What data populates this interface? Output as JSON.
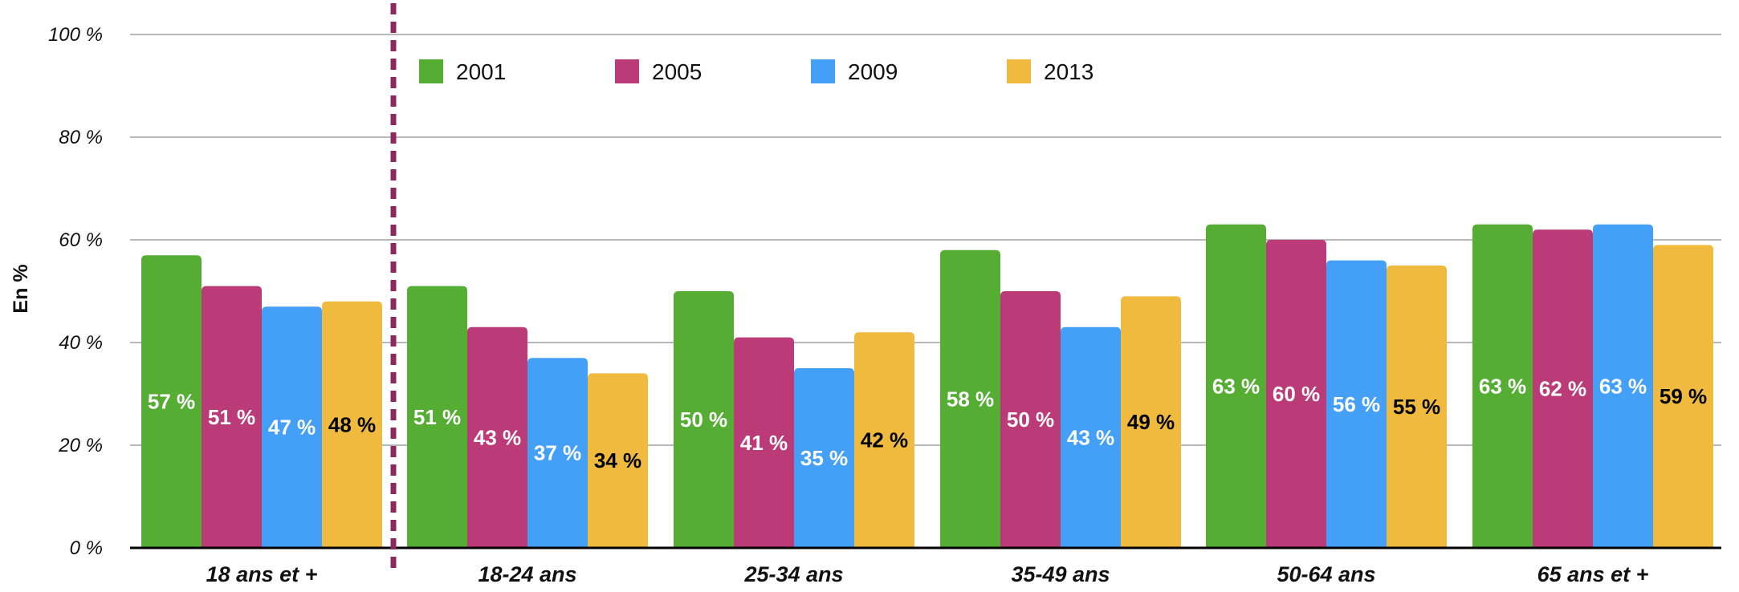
{
  "chart_data": {
    "type": "bar",
    "title": "",
    "xlabel": "",
    "ylabel": "En %",
    "ylim": [
      0,
      100
    ],
    "yticks": [
      0,
      20,
      40,
      60,
      80,
      100
    ],
    "ytick_labels": [
      "0 %",
      "20 %",
      "40 %",
      "60 %",
      "80 %",
      "100 %"
    ],
    "grid": true,
    "legend_position": "top-left",
    "separator_after_category": 0,
    "categories": [
      "18 ans et +",
      "18-24 ans",
      "25-34 ans",
      "35-49 ans",
      "50-64 ans",
      "65 ans et +"
    ],
    "series": [
      {
        "name": "2001",
        "color": "#55ad34",
        "label_color": "#ffffff",
        "values": [
          57,
          51,
          50,
          58,
          63,
          63
        ],
        "labels": [
          "57 %",
          "51 %",
          "50 %",
          "58 %",
          "63 %",
          "63 %"
        ]
      },
      {
        "name": "2005",
        "color": "#bb3a78",
        "label_color": "#ffffff",
        "values": [
          51,
          43,
          41,
          50,
          60,
          62
        ],
        "labels": [
          "51 %",
          "43 %",
          "41 %",
          "50 %",
          "60 %",
          "62 %"
        ]
      },
      {
        "name": "2009",
        "color": "#44a0f7",
        "label_color": "#ffffff",
        "values": [
          47,
          37,
          35,
          43,
          56,
          63
        ],
        "labels": [
          "47 %",
          "37 %",
          "35 %",
          "43 %",
          "56 %",
          "63 %"
        ]
      },
      {
        "name": "2013",
        "color": "#efba3e",
        "label_color": "#000000",
        "values": [
          48,
          34,
          42,
          49,
          55,
          59
        ],
        "labels": [
          "48 %",
          "34 %",
          "42 %",
          "49 %",
          "55 %",
          "59 %"
        ]
      }
    ],
    "separator_color": "#8b2a5e",
    "grid_color": "#b8b8b8",
    "axis_color": "#000000"
  }
}
